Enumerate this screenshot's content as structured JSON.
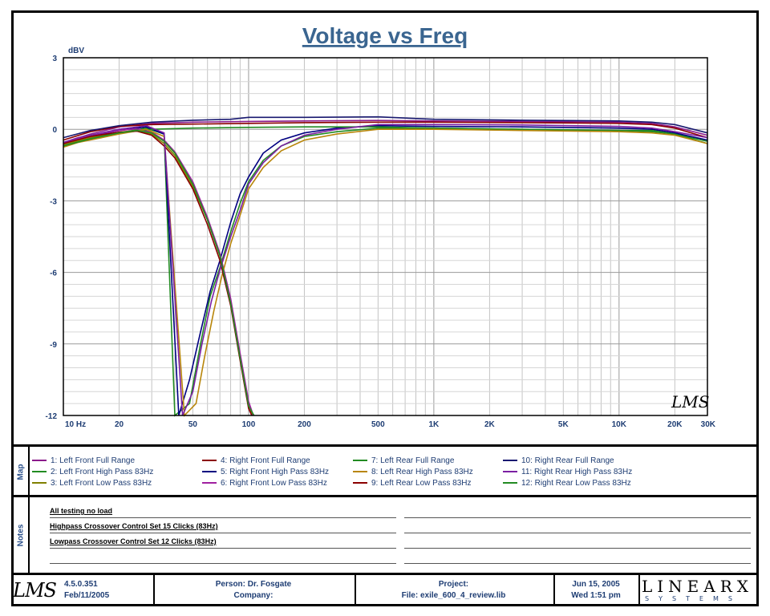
{
  "chart_data": {
    "type": "line",
    "title": "Voltage vs Freq",
    "ylabel": "dBV",
    "xscale": "log",
    "xlim": [
      10,
      30000
    ],
    "ylim": [
      -12,
      3
    ],
    "grid": true,
    "yticks": [
      3,
      0,
      -3,
      -6,
      -9,
      -12
    ],
    "xtick_labels": [
      {
        "value": 10,
        "label": "10  Hz"
      },
      {
        "value": 20,
        "label": "20"
      },
      {
        "value": 50,
        "label": "50"
      },
      {
        "value": 100,
        "label": "100"
      },
      {
        "value": 200,
        "label": "200"
      },
      {
        "value": 500,
        "label": "500"
      },
      {
        "value": 1000,
        "label": "1K"
      },
      {
        "value": 2000,
        "label": "2K"
      },
      {
        "value": 5000,
        "label": "5K"
      },
      {
        "value": 10000,
        "label": "10K"
      },
      {
        "value": 20000,
        "label": "20K"
      },
      {
        "value": 30000,
        "label": "30K"
      }
    ],
    "series": [
      {
        "name": "1: Left Front Full Range",
        "color": "#8b1a8b",
        "x": [
          10,
          14,
          20,
          30,
          50,
          80,
          100,
          200,
          500,
          1000,
          3000,
          10000,
          15000,
          20000,
          30000
        ],
        "y": [
          -0.55,
          -0.2,
          0.1,
          0.25,
          0.3,
          0.32,
          0.33,
          0.35,
          0.37,
          0.35,
          0.33,
          0.3,
          0.25,
          0.1,
          -0.25
        ]
      },
      {
        "name": "2: Left Front High Pass 83Hz",
        "color": "#228b22",
        "x": [
          10,
          12,
          15,
          20,
          28,
          35,
          40,
          48,
          55,
          62,
          70,
          80,
          90,
          100,
          120,
          150,
          200,
          300,
          500,
          1000,
          3000,
          10000,
          15000,
          20000,
          30000
        ],
        "y": [
          -0.7,
          -0.5,
          -0.35,
          -0.15,
          0.05,
          -0.2,
          -12,
          -11.5,
          -9.0,
          -7.0,
          -5.8,
          -4.3,
          -3.1,
          -2.2,
          -1.3,
          -0.7,
          -0.3,
          -0.1,
          0.05,
          0.05,
          0.0,
          -0.05,
          -0.1,
          -0.2,
          -0.5
        ]
      },
      {
        "name": "3: Left Front Low Pass 83Hz",
        "color": "#808000",
        "x": [
          10,
          14,
          20,
          25,
          30,
          35,
          40,
          50,
          60,
          70,
          80,
          90,
          100,
          105
        ],
        "y": [
          -0.65,
          -0.35,
          -0.12,
          -0.05,
          -0.2,
          -0.6,
          -1.1,
          -2.4,
          -3.8,
          -5.3,
          -7.2,
          -9.5,
          -11.5,
          -12
        ]
      },
      {
        "name": "4: Right Front Full Range",
        "color": "#8b0000",
        "x": [
          10,
          14,
          20,
          30,
          50,
          100,
          200,
          500,
          1000,
          3000,
          10000,
          15000,
          20000,
          30000
        ],
        "y": [
          -0.45,
          -0.1,
          0.12,
          0.2,
          0.22,
          0.25,
          0.28,
          0.3,
          0.3,
          0.28,
          0.25,
          0.2,
          0.05,
          -0.35
        ]
      },
      {
        "name": "5: Right Front High Pass 83Hz",
        "color": "#000080",
        "x": [
          10,
          12,
          15,
          20,
          28,
          35,
          42,
          48,
          55,
          62,
          70,
          80,
          90,
          100,
          120,
          150,
          200,
          300,
          500,
          1000,
          3000,
          10000,
          15000,
          20000,
          30000
        ],
        "y": [
          -0.6,
          -0.4,
          -0.25,
          -0.05,
          0.1,
          -0.2,
          -12,
          -10.5,
          -8.5,
          -6.8,
          -5.5,
          -3.9,
          -2.7,
          -2.0,
          -1.0,
          -0.45,
          -0.15,
          0.05,
          0.15,
          0.12,
          0.1,
          0.05,
          0.0,
          -0.15,
          -0.45
        ]
      },
      {
        "name": "6: Right Front Low Pass 83Hz",
        "color": "#a020a0",
        "x": [
          10,
          14,
          20,
          25,
          30,
          35,
          40,
          50,
          60,
          70,
          80,
          90,
          100,
          106
        ],
        "y": [
          -0.55,
          -0.25,
          -0.05,
          0.02,
          -0.12,
          -0.45,
          -0.95,
          -2.2,
          -3.7,
          -5.2,
          -7.1,
          -9.4,
          -11.4,
          -12
        ]
      },
      {
        "name": "7: Left Rear Full Range",
        "color": "#228b22",
        "x": [
          10,
          14,
          20,
          30,
          50,
          100,
          200,
          500,
          1000,
          3000,
          10000,
          15000,
          20000,
          30000
        ],
        "y": [
          -0.7,
          -0.4,
          -0.15,
          0.0,
          0.05,
          0.08,
          0.1,
          0.1,
          0.05,
          0.0,
          -0.05,
          -0.05,
          -0.2,
          -0.6
        ]
      },
      {
        "name": "8: Left Rear High Pass 83Hz",
        "color": "#b8860b",
        "x": [
          10,
          12,
          15,
          20,
          28,
          35,
          45,
          52,
          58,
          65,
          72,
          80,
          90,
          100,
          120,
          150,
          200,
          300,
          500,
          1000,
          3000,
          10000,
          15000,
          20000,
          30000
        ],
        "y": [
          -0.75,
          -0.55,
          -0.4,
          -0.2,
          0.0,
          -0.3,
          -12,
          -11.5,
          -9.5,
          -7.6,
          -6.1,
          -4.8,
          -3.6,
          -2.5,
          -1.6,
          -0.9,
          -0.45,
          -0.2,
          0.0,
          0.0,
          -0.05,
          -0.1,
          -0.15,
          -0.25,
          -0.6
        ]
      },
      {
        "name": "9: Left Rear Low Pass 83Hz",
        "color": "#8b0000",
        "x": [
          10,
          14,
          20,
          25,
          30,
          35,
          40,
          50,
          60,
          70,
          80,
          90,
          100,
          104
        ],
        "y": [
          -0.6,
          -0.3,
          -0.12,
          -0.08,
          -0.25,
          -0.7,
          -1.2,
          -2.5,
          -4.0,
          -5.5,
          -7.4,
          -9.7,
          -11.7,
          -12
        ]
      },
      {
        "name": "10: Right Rear Full Range",
        "color": "#191970",
        "x": [
          10,
          14,
          20,
          30,
          50,
          80,
          100,
          200,
          500,
          1000,
          3000,
          10000,
          15000,
          20000,
          30000
        ],
        "y": [
          -0.35,
          -0.05,
          0.15,
          0.3,
          0.38,
          0.42,
          0.5,
          0.5,
          0.52,
          0.42,
          0.38,
          0.35,
          0.3,
          0.2,
          -0.15
        ]
      },
      {
        "name": "11: Right Rear High Pass 83Hz",
        "color": "#7b1fa2",
        "x": [
          10,
          12,
          15,
          20,
          28,
          35,
          44,
          50,
          56,
          63,
          70,
          80,
          90,
          100,
          120,
          150,
          200,
          300,
          500,
          1000,
          3000,
          10000,
          15000,
          20000,
          30000
        ],
        "y": [
          -0.55,
          -0.35,
          -0.2,
          0.0,
          0.15,
          -0.15,
          -12,
          -11.0,
          -9.0,
          -7.2,
          -5.9,
          -4.5,
          -3.4,
          -2.3,
          -1.4,
          -0.7,
          -0.25,
          0.0,
          0.2,
          0.2,
          0.18,
          0.12,
          0.05,
          -0.1,
          -0.35
        ]
      },
      {
        "name": "12: Right Rear Low Pass 83Hz",
        "color": "#228b22",
        "x": [
          10,
          14,
          20,
          25,
          30,
          35,
          40,
          50,
          60,
          70,
          80,
          90,
          100,
          107
        ],
        "y": [
          -0.7,
          -0.4,
          -0.15,
          -0.05,
          -0.15,
          -0.5,
          -1.0,
          -2.3,
          -3.8,
          -5.3,
          -7.3,
          -9.6,
          -11.6,
          -12
        ]
      }
    ]
  },
  "map_label": "Map",
  "notes_label": "Notes",
  "notes": [
    "All testing no load",
    "Highpass Crossover Control Set 15 Clicks (83Hz)",
    "Lowpass Crossover Control Set 12 Clicks (83Hz)"
  ],
  "footer": {
    "version": "4.5.0.351",
    "version_date": "Feb/11/2005",
    "person": "Person: Dr. Fosgate",
    "company": "Company:",
    "project": "Project:",
    "file": "File: exile_600_4_review.lib",
    "date": "Jun 15, 2005",
    "time": "Wed  1:51 pm",
    "lms_logo": "LMS",
    "linearx_logo": "LINEARX",
    "systems_logo": "SYSTEMS"
  }
}
